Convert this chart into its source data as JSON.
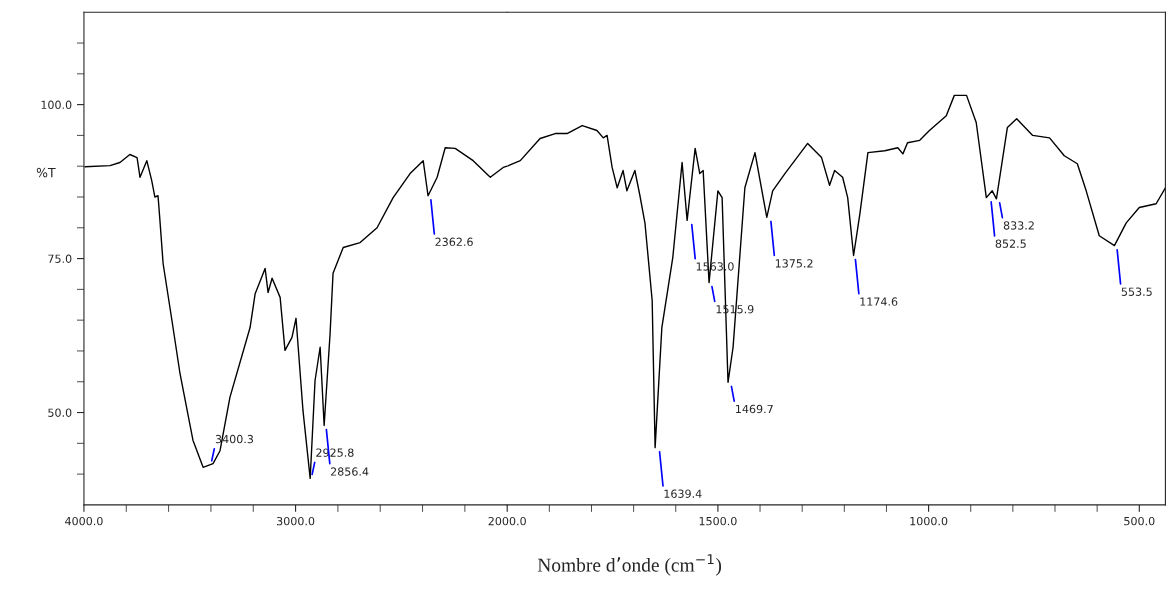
{
  "chart_data": [
    {
      "type": "line",
      "ylabel": "%T",
      "tick_labels": "xy",
      "x": [
        3995,
        3877,
        3830,
        3783,
        3749,
        3735,
        3703,
        3680,
        3665,
        3650,
        3641,
        3626,
        3584,
        3546,
        3485,
        3437,
        3390,
        3357,
        3310,
        3215,
        3191,
        3144,
        3130,
        3111,
        3073,
        3050,
        3017,
        2998,
        2965,
        2931,
        2908,
        2884,
        2865,
        2837,
        2823,
        2775,
        2695,
        2615,
        2539,
        2459,
        2397,
        2374,
        2331,
        2293,
        2246,
        2161,
        2080,
        2019,
        2000
      ],
      "series": [
        {
          "color": "#000000",
          "values": [
            89.9,
            90.1,
            90.6,
            91.9,
            91.4,
            88.2,
            90.9,
            87.7,
            85,
            85.2,
            81.2,
            74.2,
            64.9,
            56.3,
            45.5,
            41.1,
            41.7,
            43.8,
            52.5,
            63.8,
            69.3,
            73.4,
            69.5,
            71.8,
            68.7,
            60.1,
            62.2,
            65.3,
            50.3,
            39.3,
            55.2,
            60.6,
            47.9,
            62.8,
            72.6,
            76.8,
            77.6,
            80,
            84.9,
            88.8,
            90.9,
            85.2,
            88.2,
            93,
            92.9,
            90.9,
            88.2,
            89.8,
            90
          ]
        }
      ],
      "xlim": [
        4000,
        2000
      ],
      "xticks": [
        {
          "value": 4000,
          "label": "4000.0"
        },
        {
          "value": 3800,
          "label": null
        },
        {
          "value": 3600,
          "label": null
        },
        {
          "value": 3400,
          "label": null
        },
        {
          "value": 3200,
          "label": null
        },
        {
          "value": 3000,
          "label": "3000.0"
        },
        {
          "value": 2800,
          "label": null
        },
        {
          "value": 2600,
          "label": null
        },
        {
          "value": 2400,
          "label": null
        },
        {
          "value": 2200,
          "label": null
        }
      ],
      "ylim": [
        35,
        115
      ],
      "yticks": [
        {
          "value": 40,
          "label": null
        },
        {
          "value": 45,
          "label": null
        },
        {
          "value": 50,
          "label": "50.0"
        },
        {
          "value": 55,
          "label": null
        },
        {
          "value": 60,
          "label": null
        },
        {
          "value": 65,
          "label": null
        },
        {
          "value": 70,
          "label": null
        },
        {
          "value": 75,
          "label": "75.0"
        },
        {
          "value": 80,
          "label": null
        },
        {
          "value": 85,
          "label": null
        },
        {
          "value": 90,
          "label": null
        },
        {
          "value": 95,
          "label": null
        },
        {
          "value": 100,
          "label": "100.0"
        },
        {
          "value": 105,
          "label": null
        },
        {
          "value": 110,
          "label": null
        }
      ],
      "annotations": [
        {
          "text": "3400.3",
          "x": 3400.3,
          "y": 41.5
        },
        {
          "text": "2925.8",
          "x": 2925.8,
          "y": 39.3
        },
        {
          "text": "2856.4",
          "x": 2856.4,
          "y": 47.9
        },
        {
          "text": "2362.6",
          "x": 2362.6,
          "y": 85.2
        }
      ],
      "grid": false,
      "marker": "none",
      "line_style": "solid"
    },
    {
      "type": "line",
      "xlabel": "Nombre d’onde (cm$^{−1}$)",
      "tick_labels": "x",
      "x": [
        2000,
        1969,
        1922,
        1886,
        1858,
        1822,
        1787,
        1772,
        1763,
        1751,
        1739,
        1725,
        1716,
        1697,
        1685,
        1673,
        1656,
        1649,
        1633,
        1607,
        1585,
        1573,
        1554,
        1543,
        1535,
        1521,
        1500,
        1490,
        1476,
        1464,
        1436,
        1412,
        1384,
        1370,
        1341,
        1287,
        1254,
        1235,
        1223,
        1204,
        1192,
        1178,
        1163,
        1144,
        1104,
        1073,
        1061,
        1050,
        1021,
        998,
        958,
        939,
        910,
        887,
        863,
        849,
        839,
        813,
        791,
        753,
        713,
        678,
        647,
        626,
        595,
        559,
        531,
        500,
        460,
        438
      ],
      "series": [
        {
          "color": "#000000",
          "values": [
            90,
            90.9,
            94.5,
            95.3,
            95.3,
            96.6,
            95.8,
            94.6,
            95,
            89.8,
            86.5,
            89.3,
            86,
            89.3,
            85.2,
            80.7,
            68.2,
            44.3,
            63.8,
            75.2,
            90.6,
            81.2,
            92.9,
            88.8,
            89.3,
            71.1,
            86,
            84.9,
            54.9,
            60.6,
            86.5,
            92.2,
            81.7,
            86,
            88.8,
            93.7,
            91.4,
            86.9,
            89.3,
            88.2,
            84.9,
            75.5,
            82.3,
            92.2,
            92.5,
            93,
            92,
            93.8,
            94.2,
            95.8,
            98.2,
            101.5,
            101.5,
            97.1,
            84.9,
            86,
            84.7,
            96.3,
            97.7,
            95,
            94.6,
            91.7,
            90.4,
            86,
            78.7,
            77.1,
            80.8,
            83.3,
            83.9,
            86.5
          ]
        }
      ],
      "xlim": [
        2000,
        438
      ],
      "xticks": [
        {
          "value": 2000,
          "label": "2000.0"
        },
        {
          "value": 1900,
          "label": null
        },
        {
          "value": 1800,
          "label": null
        },
        {
          "value": 1700,
          "label": null
        },
        {
          "value": 1600,
          "label": null
        },
        {
          "value": 1500,
          "label": "1500.0"
        },
        {
          "value": 1400,
          "label": null
        },
        {
          "value": 1300,
          "label": null
        },
        {
          "value": 1200,
          "label": null
        },
        {
          "value": 1100,
          "label": null
        },
        {
          "value": 1000,
          "label": "1000.0"
        },
        {
          "value": 900,
          "label": null
        },
        {
          "value": 800,
          "label": null
        },
        {
          "value": 700,
          "label": null
        },
        {
          "value": 600,
          "label": null
        },
        {
          "value": 500,
          "label": "500.0"
        }
      ],
      "ylim": [
        35,
        115
      ],
      "annotations": [
        {
          "text": "1639.4",
          "x": 1639.4,
          "y": 44.3
        },
        {
          "text": "1563.0",
          "x": 1563.0,
          "y": 81.2
        },
        {
          "text": "1515.9",
          "x": 1515.9,
          "y": 71.1
        },
        {
          "text": "1469.7",
          "x": 1469.7,
          "y": 54.9
        },
        {
          "text": "1375.2",
          "x": 1375.2,
          "y": 81.7
        },
        {
          "text": "1174.6",
          "x": 1174.6,
          "y": 75.5
        },
        {
          "text": "852.5",
          "x": 852.5,
          "y": 84.9
        },
        {
          "text": "833.2",
          "x": 833.2,
          "y": 84.7
        },
        {
          "text": "553.5",
          "x": 553.5,
          "y": 77.1
        }
      ],
      "grid": false,
      "marker": "none",
      "line_style": "solid"
    }
  ]
}
